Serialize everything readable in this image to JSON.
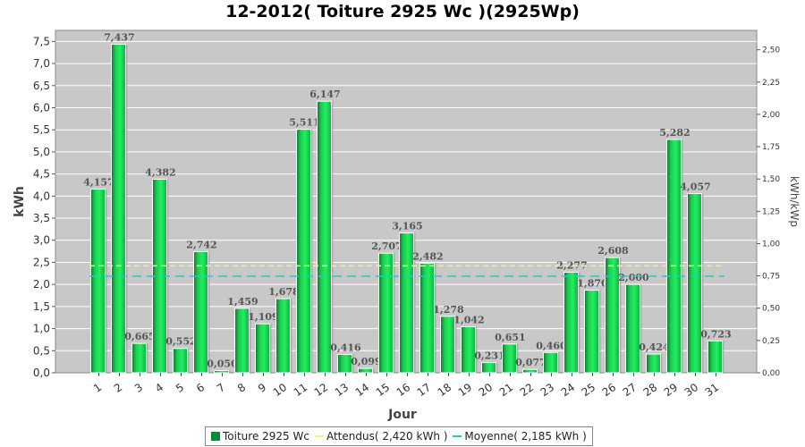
{
  "chart_data": {
    "type": "bar",
    "title": "12-2012( Toiture 2925 Wc )(2925Wp)",
    "xlabel": "Jour",
    "ylabel": "kWh",
    "y2label": "kWh/kWp",
    "ylim": [
      0,
      7.75
    ],
    "y2lim": [
      0,
      2.65
    ],
    "yticks": [
      "0,0",
      "0,5",
      "1,0",
      "1,5",
      "2,0",
      "2,5",
      "3,0",
      "3,5",
      "4,0",
      "4,5",
      "5,0",
      "5,5",
      "6,0",
      "6,5",
      "7,0",
      "7,5"
    ],
    "y2ticks": [
      "0,00",
      "0,25",
      "0,50",
      "0,75",
      "1,00",
      "1,25",
      "1,50",
      "1,75",
      "2,00",
      "2,25",
      "2,50"
    ],
    "categories": [
      "1",
      "2",
      "3",
      "4",
      "5",
      "6",
      "7",
      "8",
      "9",
      "10",
      "11",
      "12",
      "13",
      "14",
      "15",
      "16",
      "17",
      "18",
      "19",
      "20",
      "21",
      "22",
      "23",
      "24",
      "25",
      "26",
      "27",
      "28",
      "29",
      "30",
      "31"
    ],
    "series": [
      {
        "name": "Toiture 2925 Wc",
        "values": [
          4.157,
          7.437,
          0.665,
          4.382,
          0.552,
          2.742,
          0.05,
          1.459,
          1.109,
          1.678,
          5.511,
          6.147,
          0.416,
          0.099,
          2.707,
          3.165,
          2.482,
          1.278,
          1.042,
          0.231,
          0.651,
          0.077,
          0.46,
          2.277,
          1.87,
          2.608,
          2.0,
          0.424,
          5.282,
          4.057,
          0.723
        ],
        "labels": [
          "4,157",
          "7,437",
          "0,665",
          "4,382",
          "0,552",
          "2,742",
          "0,050",
          "1,459",
          "1,109",
          "1,678",
          "5,511",
          "6,147",
          "0,416",
          "0,099",
          "2,707",
          "3,165",
          "2,482",
          "1,278",
          "1,042",
          "0,231",
          "0,651",
          "0,077",
          "0,460",
          "2,277",
          "1,870",
          "2,608",
          "2,000",
          "0,424",
          "5,282",
          "4,057",
          "0,723"
        ],
        "color": "#1ee05a"
      }
    ],
    "reference_lines": [
      {
        "name": "Attendus( 2,420 kWh )",
        "value": 2.42,
        "color": "#f2f28a"
      },
      {
        "name": "Moyenne( 2,185 kWh )",
        "value": 2.185,
        "color": "#22c8c8"
      }
    ],
    "grid": true,
    "legend_position": "bottom",
    "plot_background": "#c8c8c8"
  }
}
